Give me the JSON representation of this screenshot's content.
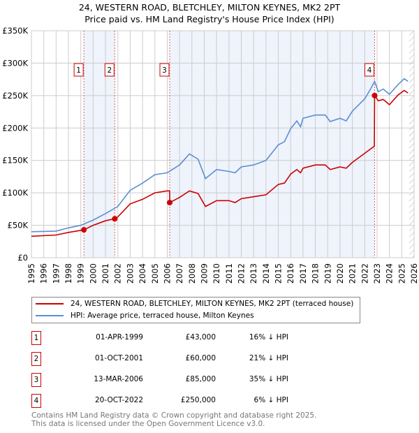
{
  "chart_data": {
    "type": "line",
    "title": "24, WESTERN ROAD, BLETCHLEY, MILTON KEYNES, MK2 2PT",
    "subtitle": "Price paid vs. HM Land Registry's House Price Index (HPI)",
    "xlim": [
      1995,
      2026
    ],
    "ylim": [
      0,
      350000
    ],
    "yticks": [
      {
        "v": 0,
        "l": "£0"
      },
      {
        "v": 50000,
        "l": "£50K"
      },
      {
        "v": 100000,
        "l": "£100K"
      },
      {
        "v": 150000,
        "l": "£150K"
      },
      {
        "v": 200000,
        "l": "£200K"
      },
      {
        "v": 250000,
        "l": "£250K"
      },
      {
        "v": 300000,
        "l": "£300K"
      },
      {
        "v": 350000,
        "l": "£350K"
      }
    ],
    "xticks": [
      "1995",
      "1996",
      "1997",
      "1998",
      "1999",
      "2000",
      "2001",
      "2002",
      "2003",
      "2004",
      "2005",
      "2006",
      "2007",
      "2008",
      "2009",
      "2010",
      "2011",
      "2012",
      "2013",
      "2014",
      "2015",
      "2016",
      "2017",
      "2018",
      "2019",
      "2020",
      "2021",
      "2022",
      "2023",
      "2024",
      "2025",
      "2026"
    ],
    "series": [
      {
        "name": "24, WESTERN ROAD, BLETCHLEY, MILTON KEYNES, MK2 2PT (terraced house)",
        "color": "#cc0000",
        "x": [
          1995,
          1997,
          1998,
          1999.25,
          2000,
          2001,
          2001.75,
          2002,
          2003,
          2004,
          2005,
          2006,
          2006.19,
          2006.21,
          2007,
          2007.8,
          2008.5,
          2009.1,
          2010,
          2011,
          2011.5,
          2012,
          2013,
          2014,
          2015,
          2015.5,
          2016,
          2016.5,
          2016.8,
          2017,
          2018,
          2018.8,
          2019.2,
          2020,
          2020.5,
          2021,
          2022,
          2022.78,
          2022.8,
          2023.1,
          2023.5,
          2024,
          2024.7,
          2025.2,
          2025.5
        ],
        "y": [
          33,
          35,
          39,
          43,
          50,
          57,
          60,
          63,
          83,
          90,
          100,
          103,
          103,
          85,
          93,
          103,
          99,
          79,
          88,
          88,
          85,
          91,
          94,
          97,
          113,
          115,
          129,
          136,
          131,
          138,
          143,
          143,
          136,
          140,
          138,
          147,
          161,
          172,
          250,
          242,
          244,
          236,
          251,
          258,
          254
        ]
      },
      {
        "name": "HPI: Average price, terraced house, Milton Keynes",
        "color": "#5b8fd0",
        "x": [
          1995,
          1997,
          1998,
          1999,
          2000,
          2001,
          2002,
          2003,
          2004,
          2005,
          2006,
          2007,
          2007.8,
          2008.5,
          2009.1,
          2010,
          2011,
          2011.5,
          2012,
          2013,
          2014,
          2015,
          2015.5,
          2016,
          2016.5,
          2016.8,
          2017,
          2018,
          2018.8,
          2019.2,
          2020,
          2020.5,
          2021,
          2022,
          2022.5,
          2022.8,
          2023.1,
          2023.5,
          2024,
          2024.7,
          2025.2,
          2025.5
        ],
        "y": [
          40,
          41,
          46,
          50,
          58,
          68,
          79,
          104,
          115,
          128,
          131,
          143,
          160,
          152,
          122,
          136,
          133,
          131,
          140,
          143,
          150,
          174,
          179,
          199,
          211,
          202,
          215,
          220,
          220,
          210,
          215,
          211,
          226,
          245,
          261,
          272,
          256,
          260,
          252,
          267,
          276,
          272
        ]
      }
    ],
    "sales": [
      {
        "n": "1",
        "date": "01-APR-1999",
        "price": "£43,000",
        "hpi": "16% ↓ HPI",
        "x": 1999.25,
        "y": 43
      },
      {
        "n": "2",
        "date": "01-OCT-2001",
        "price": "£60,000",
        "hpi": "21% ↓ HPI",
        "x": 2001.75,
        "y": 60
      },
      {
        "n": "3",
        "date": "13-MAR-2006",
        "price": "£85,000",
        "hpi": "35% ↓ HPI",
        "x": 2006.2,
        "y": 85
      },
      {
        "n": "4",
        "date": "20-OCT-2022",
        "price": "£250,000",
        "hpi": "6% ↓ HPI",
        "x": 2022.8,
        "y": 250
      }
    ],
    "forecast_from": 2025.6
  },
  "footer": {
    "line1": "Contains HM Land Registry data © Crown copyright and database right 2025.",
    "line2": "This data is licensed under the Open Government Licence v3.0."
  }
}
